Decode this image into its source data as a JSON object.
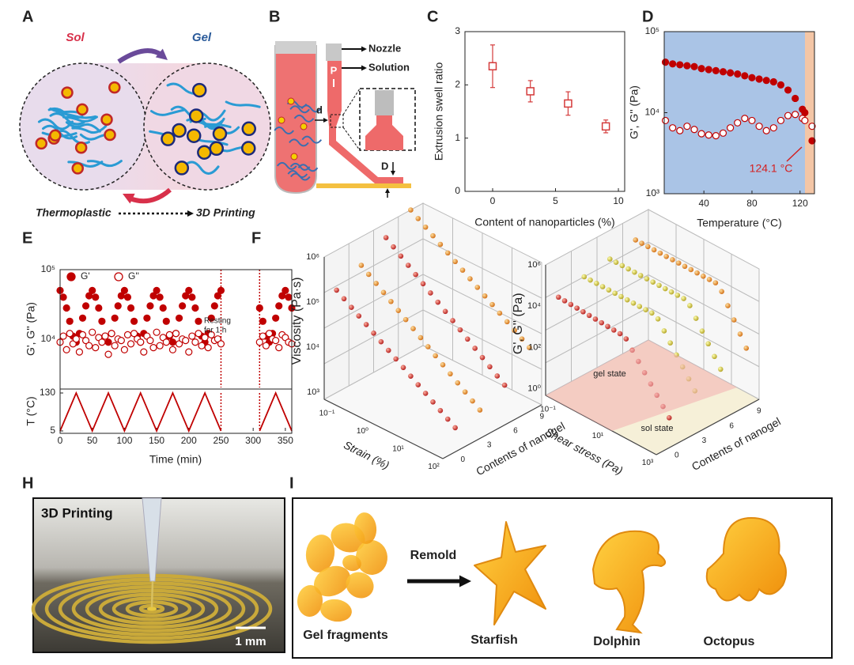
{
  "panels": {
    "A": {
      "label": "A",
      "sol": "Sol",
      "gel": "Gel",
      "thermoplastic": "Thermoplastic",
      "printing": "3D Printing"
    },
    "B": {
      "label": "B",
      "p": "P",
      "nozzle": "Nozzle",
      "solution": "Solution",
      "d": "d",
      "D": "D"
    },
    "C": {
      "label": "C"
    },
    "D": {
      "label": "D"
    },
    "E": {
      "label": "E"
    },
    "F": {
      "label": "F",
      "zlabel": "Viscosity (Pa·s)",
      "zticks": [
        "10⁶",
        "10⁵",
        "10⁴",
        "10³"
      ],
      "xlabel": "Strain (%)",
      "xticks": [
        "10⁻¹",
        "10⁰",
        "10¹",
        "10²"
      ],
      "ylabel": "Contents of nanogel",
      "yticks": [
        "0",
        "3",
        "6",
        "9"
      ]
    },
    "G": {
      "label": "G",
      "zlabel": "G', G'' (Pa)",
      "zticks": [
        "10⁶",
        "10⁴",
        "10²",
        "10⁰"
      ],
      "xlabel": "Shear stress (Pa)",
      "xticks": [
        "10⁻¹",
        "10¹",
        "10³"
      ],
      "ylabel": "Contents of nanogel",
      "yticks": [
        "0",
        "3",
        "6",
        "9"
      ],
      "gel": "gel state",
      "sol": "sol state"
    },
    "H": {
      "label": "H",
      "title": "3D Printing",
      "scale": "1 mm"
    },
    "I": {
      "label": "I",
      "remold": "Remold",
      "fragments": "Gel fragments",
      "starfish": "Starfish",
      "dolphin": "Dolphin",
      "octopus": "Octopus"
    }
  },
  "chart_data": [
    {
      "type": "scatter",
      "xlabel": "Content of nanoparticles (%)",
      "ylabel": "Extrusion swell ratio",
      "x": [
        0,
        3,
        6,
        9
      ],
      "values": [
        2.35,
        1.88,
        1.65,
        1.22
      ],
      "errors": [
        0.4,
        0.2,
        0.22,
        0.12
      ],
      "color": "#d43a3a",
      "marker": "open-square",
      "xlim": [
        -2.2,
        10.5
      ],
      "ylim": [
        0,
        3
      ],
      "xticks": [
        0,
        5,
        10
      ],
      "yticks": [
        0,
        1,
        2,
        3
      ]
    },
    {
      "type": "scatter",
      "xlabel": "Temperature (°C)",
      "ylabel": "G', G'' (Pa)",
      "log_y": true,
      "xlim": [
        7,
        132
      ],
      "ylim": [
        1000,
        100000
      ],
      "xticks": [
        40,
        80,
        120
      ],
      "yticks": [
        {
          "value": 1000,
          "label": "10³"
        },
        {
          "value": 10000,
          "label": "10⁴"
        },
        {
          "value": 100000,
          "label": "10⁵"
        }
      ],
      "region_colors": [
        "#aac4e6",
        "#f4c6a6"
      ],
      "transition": {
        "value": 124.1,
        "label": "124.1 °C"
      },
      "x": [
        8,
        14,
        20,
        26,
        32,
        38,
        44,
        50,
        56,
        62,
        68,
        74,
        80,
        86,
        92,
        98,
        104,
        110,
        116,
        122,
        124,
        130
      ],
      "series": [
        {
          "color": "#c00000",
          "marker": "filled",
          "values": [
            42000,
            40000,
            39000,
            38000,
            37000,
            35000,
            34000,
            33000,
            32000,
            31000,
            30000,
            28500,
            27000,
            26000,
            25000,
            24000,
            22000,
            19000,
            15000,
            11000,
            10000,
            4500
          ]
        },
        {
          "color": "#c00000",
          "marker": "open",
          "values": [
            8000,
            6500,
            6000,
            6800,
            6200,
            5500,
            5300,
            5200,
            5600,
            6500,
            7500,
            8500,
            8000,
            6800,
            6000,
            6500,
            8000,
            9200,
            9500,
            8500,
            8000,
            6800
          ]
        }
      ]
    },
    {
      "type": "scatter",
      "ylabel": "G', G'' (Pa)",
      "log_y": true,
      "xlim": [
        0,
        360
      ],
      "ylim": [
        2000,
        100000
      ],
      "yticks": [
        {
          "value": 10000,
          "label": "10⁴"
        },
        {
          "value": 100000,
          "label": "10⁵"
        }
      ],
      "vlines": [
        250,
        310
      ],
      "annotation": [
        "Resting",
        "for 1 h"
      ],
      "x": [
        0,
        5,
        10,
        15,
        20,
        25,
        30,
        35,
        40,
        45,
        50,
        55,
        60,
        65,
        70,
        75,
        80,
        85,
        90,
        95,
        100,
        105,
        110,
        115,
        120,
        125,
        130,
        135,
        140,
        145,
        150,
        155,
        160,
        165,
        170,
        175,
        180,
        185,
        190,
        195,
        200,
        205,
        210,
        215,
        220,
        225,
        230,
        235,
        240,
        245,
        250,
        310,
        315,
        320,
        325,
        330,
        335,
        340,
        345,
        350,
        355,
        360
      ],
      "series": [
        {
          "name": "G'",
          "color": "#c00000",
          "marker": "filled",
          "values": [
            50000,
            40000,
            28000,
            18000,
            11000,
            9000,
            12000,
            20000,
            30000,
            42000,
            50000,
            40000,
            28000,
            18000,
            11000,
            9000,
            12000,
            20000,
            30000,
            42000,
            50000,
            40000,
            28000,
            18000,
            11000,
            9000,
            12000,
            20000,
            30000,
            42000,
            50000,
            40000,
            28000,
            18000,
            11000,
            9000,
            12000,
            20000,
            30000,
            42000,
            50000,
            40000,
            28000,
            18000,
            11000,
            9000,
            12000,
            20000,
            30000,
            42000,
            50000,
            28000,
            18000,
            11000,
            9000,
            12000,
            20000,
            30000,
            42000,
            50000,
            40000,
            28000
          ]
        },
        {
          "name": "G''",
          "color": "#c00000",
          "marker": "open",
          "values": [
            9000,
            11000,
            7000,
            12000,
            8500,
            10000,
            6500,
            11500,
            9500,
            8000,
            12500,
            7500,
            10500,
            9000,
            11000,
            6000,
            12000,
            8000,
            10000,
            9500,
            7000,
            11500,
            8500,
            12000,
            10000,
            9000,
            6500,
            11000,
            9500,
            7500,
            12500,
            8000,
            10500,
            9000,
            11500,
            7000,
            12000,
            8500,
            10000,
            9500,
            6500,
            11000,
            9000,
            12000,
            8000,
            10500,
            7500,
            11500,
            9500,
            10000,
            8500,
            9000,
            11000,
            8000,
            12000,
            10000,
            9500,
            7500,
            11500,
            10500,
            9000,
            8500
          ]
        }
      ]
    },
    {
      "type": "line",
      "xlabel": "Time (min)",
      "ylabel": "T (°C)",
      "xlim": [
        0,
        360
      ],
      "ylim": [
        5,
        130
      ],
      "xticks": [
        0,
        50,
        100,
        150,
        200,
        250,
        300,
        350
      ],
      "yticks": [
        5,
        130
      ],
      "vlines": [
        250,
        310
      ],
      "color": "#c00000",
      "x": [
        0,
        25,
        50,
        75,
        100,
        125,
        150,
        175,
        200,
        225,
        250,
        280,
        310,
        335,
        360
      ],
      "values": [
        5,
        130,
        5,
        130,
        5,
        130,
        5,
        130,
        5,
        130,
        5,
        null,
        5,
        130,
        5
      ]
    }
  ]
}
